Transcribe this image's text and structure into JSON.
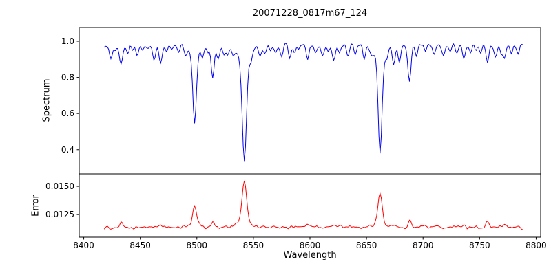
{
  "chart_data": {
    "type": "line",
    "title": "20071228_0817m67_124",
    "xlabel": "Wavelength",
    "noise_seed": 7,
    "sample_step": 1.0,
    "data_x_range": [
      8418,
      8788
    ],
    "x_axis": {
      "range": [
        8396,
        8804
      ],
      "ticks": [
        8400,
        8450,
        8500,
        8550,
        8600,
        8650,
        8700,
        8750,
        8800
      ],
      "tick_labels": [
        "8400",
        "8450",
        "8500",
        "8550",
        "8600",
        "8650",
        "8700",
        "8750",
        "8800"
      ]
    },
    "panels": [
      {
        "name": "spectrum",
        "ylabel": "Spectrum",
        "color": "#0000ee",
        "y_range": [
          0.266,
          1.076
        ],
        "y_ticks": [
          0.4,
          0.6,
          0.8,
          1.0
        ],
        "y_tick_labels": [
          "0.4",
          "0.6",
          "0.8",
          "1.0"
        ],
        "continuum": 0.975,
        "noise_amplitude": 0.02,
        "absorption_lines": [
          [
            8424,
            0.09,
            0.9
          ],
          [
            8428,
            0.05,
            0.8
          ],
          [
            8433,
            0.13,
            1.0
          ],
          [
            8439,
            0.07,
            0.9
          ],
          [
            8443,
            0.04,
            0.8
          ],
          [
            8447,
            0.07,
            0.9
          ],
          [
            8452,
            0.05,
            0.8
          ],
          [
            8457,
            0.04,
            0.8
          ],
          [
            8462,
            0.09,
            0.9
          ],
          [
            8468,
            0.13,
            1.0
          ],
          [
            8473,
            0.05,
            0.8
          ],
          [
            8478,
            0.04,
            0.8
          ],
          [
            8484,
            0.05,
            0.8
          ],
          [
            8490,
            0.07,
            0.9
          ],
          [
            8498,
            0.44,
            1.3
          ],
          [
            8498,
            0.06,
            4.0
          ],
          [
            8505,
            0.06,
            0.9
          ],
          [
            8510,
            0.05,
            0.8
          ],
          [
            8514,
            0.21,
            1.1
          ],
          [
            8519,
            0.1,
            0.9
          ],
          [
            8524,
            0.06,
            0.8
          ],
          [
            8527,
            0.08,
            0.9
          ],
          [
            8532,
            0.05,
            0.8
          ],
          [
            8542,
            0.6,
            1.7
          ],
          [
            8542,
            0.08,
            6.0
          ],
          [
            8548,
            0.05,
            0.9
          ],
          [
            8556,
            0.07,
            0.9
          ],
          [
            8560,
            0.05,
            0.8
          ],
          [
            8565,
            0.04,
            0.8
          ],
          [
            8570,
            0.05,
            0.8
          ],
          [
            8575,
            0.06,
            0.9
          ],
          [
            8582,
            0.09,
            0.9
          ],
          [
            8586,
            0.04,
            0.8
          ],
          [
            8590,
            0.05,
            0.8
          ],
          [
            8598,
            0.1,
            1.0
          ],
          [
            8605,
            0.05,
            0.8
          ],
          [
            8611,
            0.07,
            0.9
          ],
          [
            8616,
            0.04,
            0.8
          ],
          [
            8621,
            0.11,
            1.0
          ],
          [
            8626,
            0.06,
            0.8
          ],
          [
            8634,
            0.07,
            0.9
          ],
          [
            8640,
            0.05,
            0.8
          ],
          [
            8648,
            0.08,
            0.9
          ],
          [
            8654,
            0.05,
            0.8
          ],
          [
            8662,
            0.57,
            1.5
          ],
          [
            8662,
            0.07,
            5.0
          ],
          [
            8668,
            0.05,
            0.9
          ],
          [
            8674,
            0.13,
            1.0
          ],
          [
            8679,
            0.11,
            1.0
          ],
          [
            8688,
            0.24,
            1.1
          ],
          [
            8694,
            0.06,
            0.8
          ],
          [
            8702,
            0.05,
            0.8
          ],
          [
            8710,
            0.07,
            0.9
          ],
          [
            8718,
            0.06,
            0.9
          ],
          [
            8724,
            0.05,
            0.8
          ],
          [
            8730,
            0.05,
            0.8
          ],
          [
            8736,
            0.09,
            0.9
          ],
          [
            8742,
            0.05,
            0.8
          ],
          [
            8747,
            0.04,
            0.8
          ],
          [
            8751,
            0.06,
            0.8
          ],
          [
            8757,
            0.11,
            1.0
          ],
          [
            8764,
            0.07,
            0.9
          ],
          [
            8769,
            0.05,
            0.8
          ],
          [
            8772,
            0.09,
            0.9
          ],
          [
            8778,
            0.06,
            0.8
          ],
          [
            8784,
            0.07,
            0.9
          ]
        ]
      },
      {
        "name": "error",
        "ylabel": "Error",
        "color": "#ff0000",
        "y_range": [
          0.0105,
          0.0161
        ],
        "y_ticks": [
          0.0125,
          0.015
        ],
        "y_tick_labels": [
          "0.0125",
          "0.0150"
        ],
        "baseline": 0.0114,
        "noise_amplitude": 0.00028,
        "peaks": [
          [
            8433,
            0.0004,
            1.2
          ],
          [
            8468,
            0.0003,
            1.2
          ],
          [
            8498,
            0.0016,
            1.4
          ],
          [
            8498,
            0.0004,
            3.5
          ],
          [
            8514,
            0.0005,
            1.2
          ],
          [
            8542,
            0.0036,
            1.7
          ],
          [
            8542,
            0.0008,
            5.0
          ],
          [
            8598,
            0.0003,
            1.2
          ],
          [
            8621,
            0.0003,
            1.2
          ],
          [
            8662,
            0.0028,
            1.6
          ],
          [
            8662,
            0.0005,
            4.5
          ],
          [
            8674,
            0.0003,
            1.2
          ],
          [
            8688,
            0.0007,
            1.2
          ],
          [
            8736,
            0.0003,
            1.2
          ],
          [
            8757,
            0.0005,
            1.2
          ],
          [
            8772,
            0.0004,
            1.2
          ]
        ]
      }
    ]
  }
}
